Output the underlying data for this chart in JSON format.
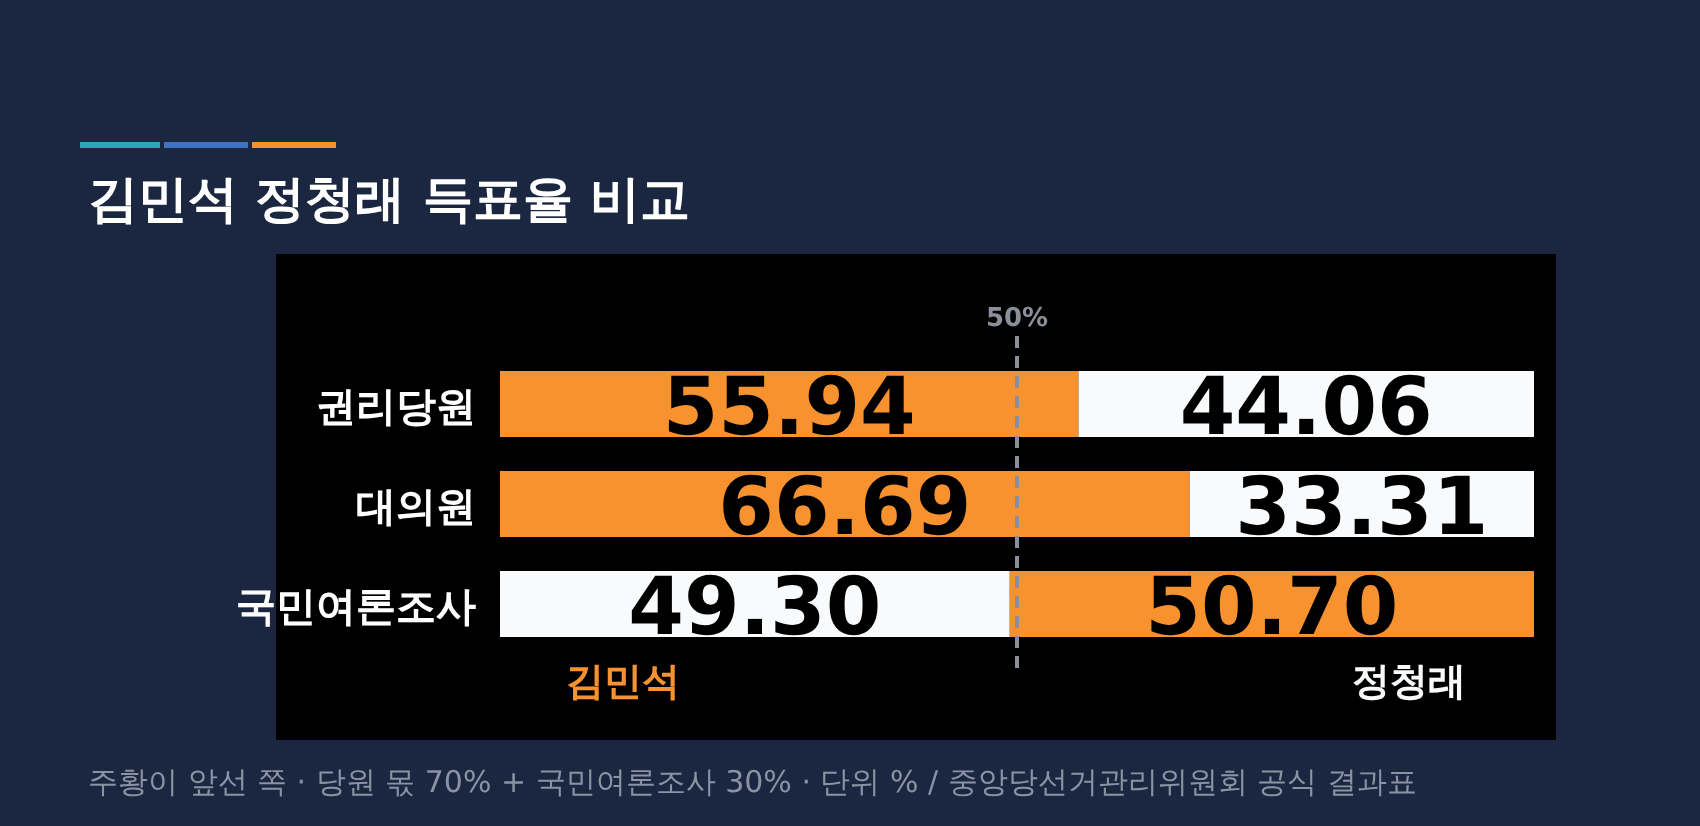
{
  "chart_data": {
    "type": "bar",
    "orientation": "horizontal",
    "stacked": true,
    "title": "김민석 정청래 득표율 비교",
    "categories": [
      "권리당원",
      "대의원",
      "국민여론조사"
    ],
    "series": [
      {
        "name": "김민석",
        "color": "#f7922e",
        "colors": [
          "#f7922e",
          "#f7922e",
          "#f8fafb"
        ],
        "values": [
          55.94,
          66.69,
          49.3
        ],
        "value_labels": [
          "55.94",
          "66.69",
          "49.30"
        ]
      },
      {
        "name": "정청래",
        "color": "#f8fafb",
        "colors": [
          "#f8fafb",
          "#f8fafb",
          "#f7922e"
        ],
        "values": [
          44.06,
          33.31,
          50.7
        ],
        "value_labels": [
          "44.06",
          "33.31",
          "50.70"
        ]
      }
    ],
    "xlim": [
      0,
      100
    ],
    "tick_labels": false,
    "legend": "bottom",
    "ref_lines": [
      {
        "axis": "x",
        "value": 50,
        "label": "50%",
        "line_style": "dashed",
        "color": "#8a8f99"
      }
    ],
    "annotations": [
      "주황이 앞선 쪽 · 당원 몫 70% + 국민여론조사 30% · 단위 % / 중앙당선거관리위원회 공식 결과표"
    ]
  }
}
